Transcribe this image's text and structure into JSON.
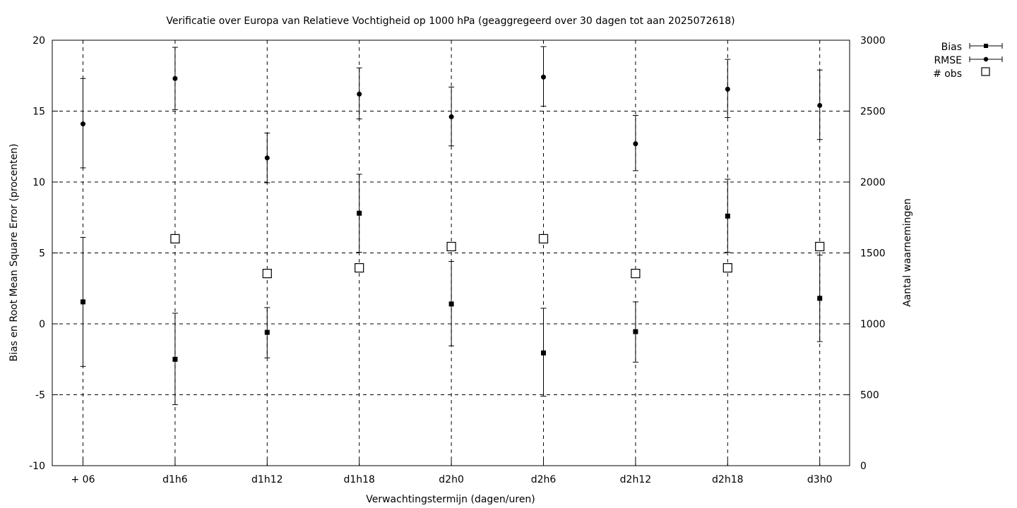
{
  "chart_data": {
    "type": "scatter",
    "title": "Verificatie over Europa van Relatieve Vochtigheid op 1000 hPa (geaggregeerd over 30 dagen tot aan 2025072618)",
    "xlabel": "Verwachtingstermijn (dagen/uren)",
    "ylabel": "Bias en Root Mean Square Error (procenten)",
    "y2label": "Aantal waarnemingen",
    "categories": [
      "+ 06",
      "d1h6",
      "d1h12",
      "d1h18",
      "d2h0",
      "d2h6",
      "d2h12",
      "d2h18",
      "d3h0"
    ],
    "ylim": [
      -10,
      20
    ],
    "yticks": [
      "20",
      "15",
      "10",
      "5",
      "0",
      "-5",
      "-10"
    ],
    "y2lim": [
      0,
      3000
    ],
    "y2ticks": [
      "3000",
      "2500",
      "2000",
      "1500",
      "1000",
      "500",
      "0"
    ],
    "grid": true,
    "legend_position": "top-right outside",
    "series": [
      {
        "name": "Bias",
        "marker": "square-filled",
        "axis": "left",
        "values": [
          1.55,
          -2.5,
          -0.6,
          7.8,
          1.4,
          -2.05,
          -0.55,
          7.6,
          1.8
        ],
        "err_low": [
          -3.0,
          -5.7,
          -2.4,
          5.05,
          -1.55,
          -5.1,
          -2.7,
          5.05,
          -1.25
        ],
        "err_high": [
          6.1,
          0.75,
          1.15,
          10.55,
          4.4,
          1.1,
          1.55,
          10.2,
          4.85
        ]
      },
      {
        "name": "RMSE",
        "marker": "circle-filled",
        "axis": "left",
        "values": [
          14.1,
          17.3,
          11.7,
          16.2,
          14.6,
          17.4,
          12.7,
          16.55,
          15.4
        ],
        "err_low": [
          11.0,
          15.1,
          9.95,
          14.45,
          12.55,
          15.35,
          10.8,
          14.55,
          13.0
        ],
        "err_high": [
          17.3,
          19.5,
          13.45,
          18.05,
          16.7,
          19.55,
          14.7,
          18.65,
          17.9
        ]
      },
      {
        "name": "# obs",
        "marker": "square-open",
        "axis": "right",
        "values": [
          null,
          1600,
          1355,
          1395,
          1545,
          1600,
          1355,
          1395,
          1545
        ]
      }
    ]
  }
}
